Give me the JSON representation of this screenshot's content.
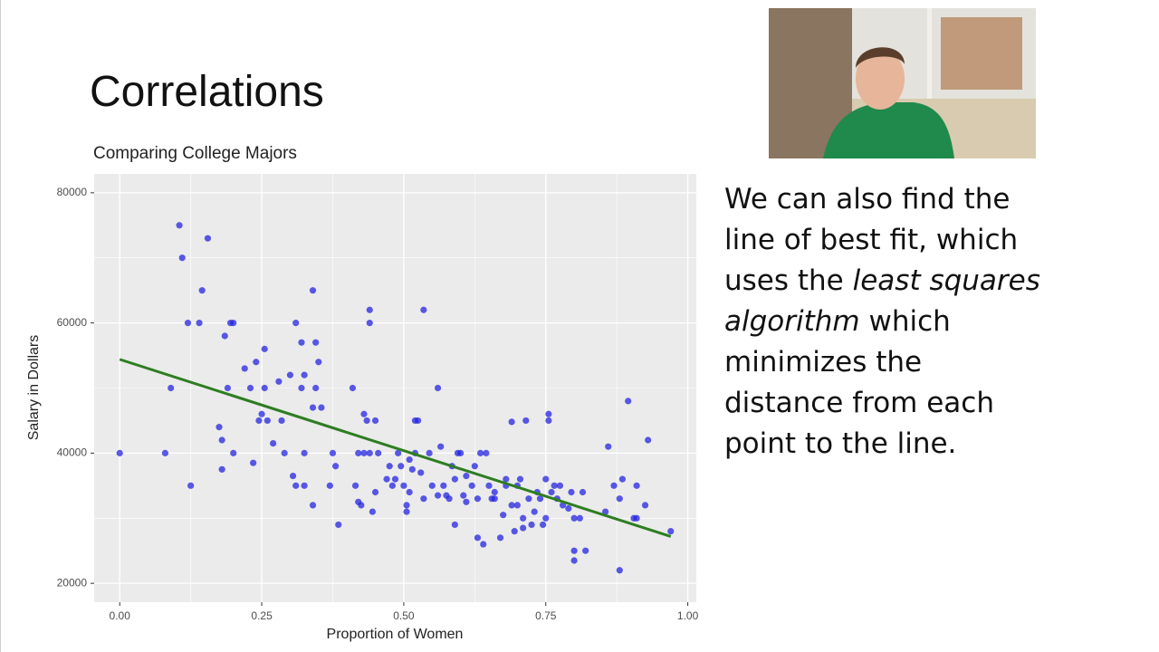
{
  "slide": {
    "title": "Correlations",
    "body_lines": [
      [
        {
          "text": "We can also find the"
        }
      ],
      [
        {
          "text": "line of best fit, which"
        }
      ],
      [
        {
          "text": "uses the "
        },
        {
          "text": "least squares",
          "italic": true
        }
      ],
      [
        {
          "text": "algorithm",
          "italic": true
        },
        {
          "text": " which"
        }
      ],
      [
        {
          "text": "minimizes the"
        }
      ],
      [
        {
          "text": "distance from each"
        }
      ],
      [
        {
          "text": "point to the line."
        }
      ]
    ]
  },
  "chart_data": {
    "type": "scatter",
    "title": "Comparing College Majors",
    "x_label": "Proportion of Women",
    "y_label": "Salary in Dollars",
    "color": "#2424e0",
    "grid": true,
    "xlim": [
      -0.045,
      1.015
    ],
    "ylim": [
      17100,
      82900
    ],
    "xticks": [
      {
        "value": 0,
        "label": "0.00"
      },
      {
        "value": 0.25,
        "label": "0.25"
      },
      {
        "value": 0.5,
        "label": "0.50"
      },
      {
        "value": 0.75,
        "label": "0.75"
      },
      {
        "value": 1,
        "label": "1.00"
      }
    ],
    "yticks": [
      20000,
      40000,
      60000,
      80000
    ],
    "fit_line": {
      "x": [
        0,
        0.97
      ],
      "y": [
        54400,
        27200
      ],
      "color": "#2e7d22"
    },
    "x": [
      0,
      0.08,
      0.09,
      0.105,
      0.11,
      0.12,
      0.125,
      0.14,
      0.145,
      0.155,
      0.175,
      0.18,
      0.18,
      0.185,
      0.19,
      0.195,
      0.2,
      0.2,
      0.22,
      0.23,
      0.235,
      0.24,
      0.245,
      0.25,
      0.255,
      0.255,
      0.26,
      0.27,
      0.28,
      0.285,
      0.29,
      0.3,
      0.305,
      0.31,
      0.31,
      0.32,
      0.32,
      0.325,
      0.325,
      0.325,
      0.34,
      0.34,
      0.34,
      0.345,
      0.345,
      0.35,
      0.355,
      0.37,
      0.375,
      0.38,
      0.385,
      0.41,
      0.415,
      0.42,
      0.42,
      0.425,
      0.43,
      0.43,
      0.435,
      0.44,
      0.44,
      0.44,
      0.445,
      0.45,
      0.45,
      0.455,
      0.47,
      0.475,
      0.48,
      0.485,
      0.49,
      0.495,
      0.5,
      0.505,
      0.505,
      0.51,
      0.51,
      0.515,
      0.52,
      0.52,
      0.525,
      0.53,
      0.535,
      0.535,
      0.545,
      0.55,
      0.56,
      0.56,
      0.565,
      0.57,
      0.575,
      0.58,
      0.585,
      0.59,
      0.59,
      0.595,
      0.6,
      0.605,
      0.61,
      0.61,
      0.62,
      0.625,
      0.63,
      0.63,
      0.635,
      0.64,
      0.645,
      0.65,
      0.655,
      0.66,
      0.66,
      0.67,
      0.675,
      0.68,
      0.68,
      0.69,
      0.69,
      0.695,
      0.7,
      0.7,
      0.705,
      0.71,
      0.71,
      0.715,
      0.72,
      0.725,
      0.73,
      0.735,
      0.74,
      0.745,
      0.75,
      0.75,
      0.755,
      0.755,
      0.76,
      0.765,
      0.77,
      0.775,
      0.78,
      0.79,
      0.795,
      0.8,
      0.8,
      0.8,
      0.81,
      0.815,
      0.82,
      0.855,
      0.86,
      0.87,
      0.88,
      0.88,
      0.885,
      0.895,
      0.905,
      0.91,
      0.91,
      0.925,
      0.93,
      0.97
    ],
    "values": [
      40000,
      40000,
      50000,
      75000,
      70000,
      60000,
      35000,
      60000,
      65000,
      73000,
      44000,
      42000,
      37500,
      58000,
      50000,
      60000,
      60000,
      40000,
      53000,
      50000,
      38500,
      54000,
      45000,
      46000,
      56000,
      50000,
      45000,
      41500,
      51000,
      45000,
      40000,
      52000,
      36500,
      35000,
      60000,
      57000,
      50000,
      52000,
      40000,
      35000,
      32000,
      65000,
      47000,
      57000,
      50000,
      54000,
      47000,
      35000,
      40000,
      38000,
      29000,
      50000,
      35000,
      32500,
      40000,
      32000,
      40000,
      46000,
      45000,
      60000,
      62000,
      40000,
      31000,
      34000,
      45000,
      40000,
      36000,
      38000,
      35000,
      36000,
      40000,
      38000,
      35000,
      32000,
      31000,
      34000,
      39000,
      37500,
      40000,
      45000,
      45000,
      37000,
      33000,
      62000,
      40000,
      35000,
      33500,
      50000,
      41000,
      35000,
      33500,
      33000,
      38000,
      29000,
      36000,
      40000,
      40000,
      33500,
      32500,
      36500,
      35000,
      38000,
      33000,
      27000,
      40000,
      26000,
      40000,
      35000,
      33000,
      34000,
      33000,
      27000,
      30500,
      35000,
      36000,
      32000,
      44800,
      28000,
      35000,
      32000,
      36000,
      30000,
      28500,
      45000,
      33000,
      29000,
      31000,
      34000,
      33000,
      29000,
      36000,
      30000,
      46000,
      45000,
      34000,
      35000,
      33000,
      35000,
      32000,
      31500,
      34000,
      30000,
      25000,
      23500,
      30000,
      34000,
      25000,
      31000,
      41000,
      35000,
      22000,
      33000,
      36000,
      48000,
      30000,
      35000,
      30000,
      32000,
      42000,
      28000
    ]
  }
}
